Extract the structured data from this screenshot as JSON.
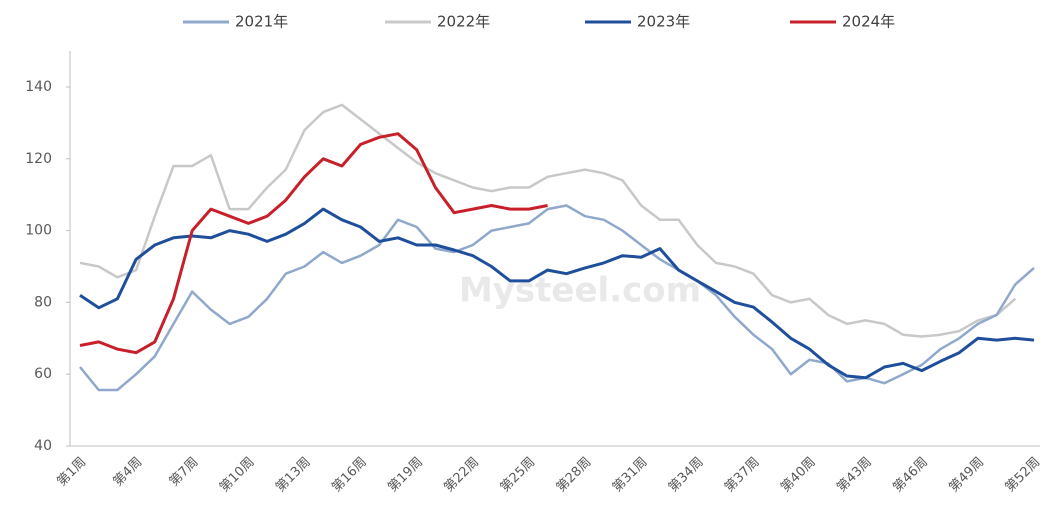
{
  "chart_data": {
    "type": "line",
    "watermark": "Mysteel.com",
    "categories": [
      "第1周",
      null,
      null,
      "第4周",
      null,
      null,
      "第7周",
      null,
      null,
      "第10周",
      null,
      null,
      "第13周",
      null,
      null,
      "第16周",
      null,
      null,
      "第19周",
      null,
      null,
      "第22周",
      null,
      null,
      "第25周",
      null,
      null,
      "第28周",
      null,
      null,
      "第31周",
      null,
      null,
      "第34周",
      null,
      null,
      "第37周",
      null,
      null,
      "第40周",
      null,
      null,
      "第43周",
      null,
      null,
      "第46周",
      null,
      null,
      "第49周",
      null,
      null,
      "第52周"
    ],
    "series": [
      {
        "name": "2021年",
        "color": "#8fa8cc",
        "values": [
          62,
          55.6,
          55.6,
          60,
          65,
          74,
          83,
          78,
          74,
          76,
          81,
          88,
          90,
          94,
          91,
          93,
          96,
          103,
          101,
          95,
          94,
          96,
          100,
          101,
          102,
          106,
          107,
          104,
          103,
          100,
          96,
          92,
          89,
          86,
          82,
          76,
          71,
          67,
          60,
          64,
          63,
          58,
          59,
          57.5,
          60,
          62.6,
          67,
          70,
          74,
          76.5,
          85,
          89.6
        ]
      },
      {
        "name": "2022年",
        "color": "#c8c8c8",
        "values": [
          91,
          90,
          87,
          89,
          104,
          118,
          118,
          121,
          106,
          106,
          112,
          117,
          128,
          133,
          135,
          131,
          127,
          123,
          119,
          116,
          114,
          112,
          111,
          112,
          112,
          115,
          116,
          117,
          116,
          114,
          107,
          103,
          103,
          96,
          91,
          90,
          88,
          82,
          80,
          81,
          76.5,
          74,
          75,
          74,
          71,
          70.5,
          71,
          72,
          75,
          76.5,
          81,
          null
        ]
      },
      {
        "name": "2023年",
        "color": "#1f4e9a",
        "values": [
          82,
          78.5,
          81,
          92,
          96,
          98,
          98.5,
          98,
          100,
          99,
          97,
          99,
          102,
          106,
          103,
          101,
          97,
          98,
          96,
          96,
          94.6,
          93,
          90,
          86,
          86,
          89,
          88,
          89.6,
          91,
          93,
          92.6,
          95,
          89,
          86,
          83,
          80,
          78.7,
          74.5,
          70,
          67,
          62.6,
          59.5,
          59,
          62,
          63,
          61,
          63.6,
          66,
          70,
          69.5,
          70,
          69.5
        ]
      },
      {
        "name": "2024年",
        "color": "#c8202a",
        "values": [
          68,
          69,
          67,
          66,
          69,
          81,
          100,
          106,
          104,
          102,
          104,
          108.5,
          115,
          120,
          118,
          124,
          126,
          127,
          122.5,
          112,
          105,
          106,
          107,
          106,
          106,
          107,
          null,
          null,
          null,
          null,
          null,
          null,
          null,
          null,
          null,
          null,
          null,
          null,
          null,
          null,
          null,
          null,
          null,
          null,
          null,
          null,
          null,
          null,
          null,
          null,
          null,
          null
        ]
      }
    ],
    "ylim": [
      40,
      150
    ],
    "yticks": [
      40,
      60,
      80,
      100,
      120,
      140
    ],
    "legend": "top"
  }
}
